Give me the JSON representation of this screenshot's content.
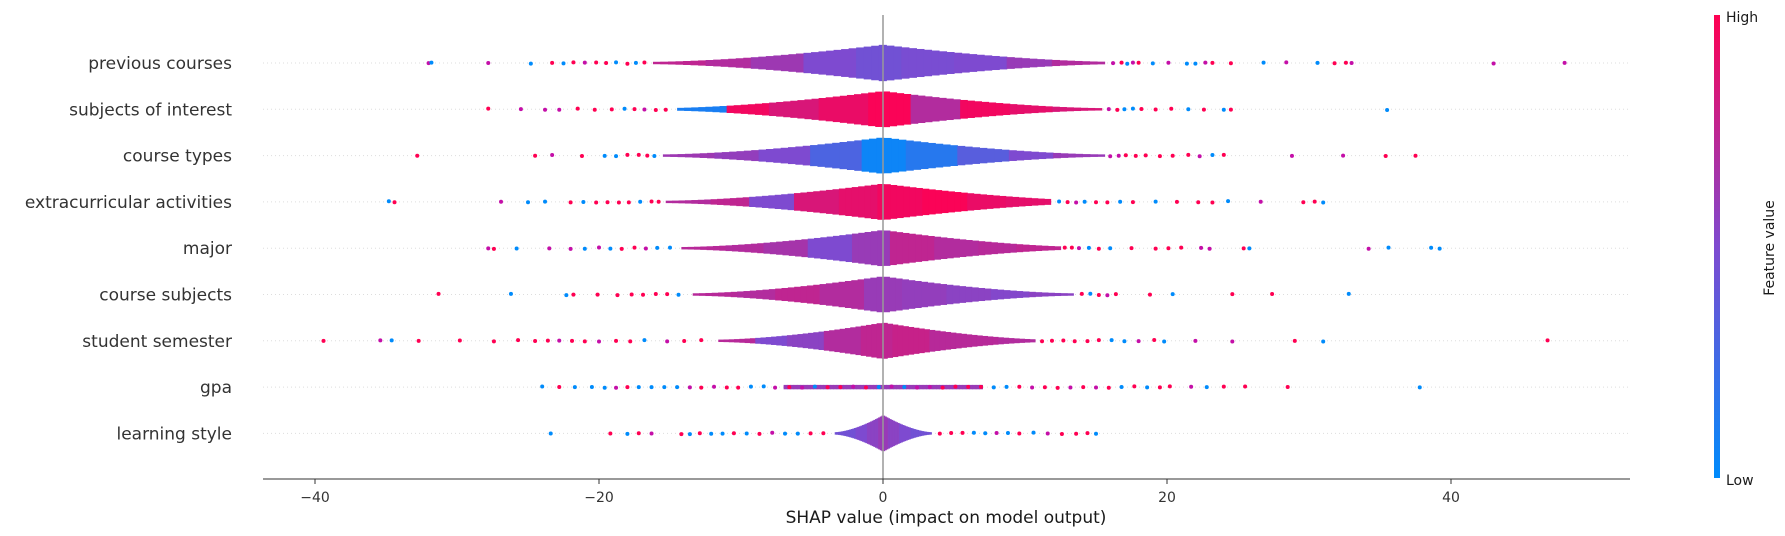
{
  "chart_data": {
    "type": "violin",
    "xlabel": "SHAP value (impact on model output)",
    "xlim": [
      -44,
      52
    ],
    "x_ticks": [
      -40,
      -20,
      0,
      20,
      40
    ],
    "x_tick_labels": [
      "−40",
      "−20",
      "0",
      "20",
      "40"
    ],
    "colorbar": {
      "title": "Feature value",
      "high_label": "High",
      "low_label": "Low",
      "high_color": "#ff0052",
      "low_color": "#008bfb"
    },
    "zero_line": true,
    "features": [
      {
        "name": "previous courses",
        "min": -32.2,
        "max": 48.0,
        "body": [
          -16.2,
          15.6
        ],
        "scatter_values": [
          -32.0,
          -31.8,
          -27.8,
          -24.8,
          -23.3,
          -22.5,
          -21.8,
          -21.0,
          -20.2,
          -19.5,
          -18.8,
          -18.0,
          -17.4,
          -16.8,
          16.2,
          16.8,
          17.2,
          17.6,
          18.0,
          19.0,
          20.1,
          21.4,
          22.0,
          22.7,
          23.2,
          24.5,
          26.8,
          28.4,
          30.6,
          31.8,
          32.6,
          33.0,
          43.0,
          48.0
        ],
        "segment_color_levels": [
          0.75,
          0.7,
          0.62,
          0.5,
          0.45,
          0.48,
          0.5,
          0.6,
          0.7
        ]
      },
      {
        "name": "subjects of interest",
        "min": -27.8,
        "max": 35.5,
        "body": [
          -14.5,
          15.4
        ],
        "scatter_values": [
          -27.8,
          -25.5,
          -23.8,
          -22.8,
          -21.5,
          -20.3,
          -19.1,
          -18.2,
          -17.5,
          -16.8,
          -16.0,
          -15.3,
          15.9,
          16.5,
          17.0,
          17.6,
          18.2,
          19.2,
          20.3,
          21.5,
          22.6,
          24.0,
          24.5,
          35.5
        ],
        "segment_color_levels": [
          0.1,
          0.95,
          0.85,
          0.92,
          0.98,
          0.7,
          0.95,
          0.9,
          0.85
        ]
      },
      {
        "name": "course types",
        "min": -32.8,
        "max": 37.5,
        "body": [
          -15.5,
          15.6
        ],
        "scatter_values": [
          -32.8,
          -24.5,
          -23.3,
          -21.2,
          -19.6,
          -18.8,
          -18.0,
          -17.2,
          -16.6,
          -16.1,
          16.0,
          16.6,
          17.1,
          17.8,
          18.5,
          19.5,
          20.4,
          21.5,
          22.3,
          23.2,
          24.0,
          28.8,
          32.4,
          35.4,
          37.5
        ],
        "segment_color_levels": [
          0.62,
          0.58,
          0.5,
          0.3,
          0.05,
          0.15,
          0.35,
          0.5,
          0.6
        ]
      },
      {
        "name": "extracurricular activities",
        "min": -34.8,
        "max": 31.0,
        "body": [
          -15.3,
          11.8
        ],
        "scatter_values": [
          -34.8,
          -34.4,
          -26.9,
          -25.0,
          -23.8,
          -22.0,
          -21.1,
          -20.2,
          -19.4,
          -18.6,
          -17.9,
          -17.1,
          -16.3,
          -15.8,
          12.4,
          13.0,
          13.6,
          14.2,
          15.0,
          15.8,
          16.7,
          17.6,
          19.2,
          20.7,
          22.2,
          23.2,
          24.3,
          26.6,
          29.6,
          30.4,
          31.0
        ],
        "segment_color_levels": [
          0.7,
          0.75,
          0.5,
          0.85,
          0.9,
          0.95,
          0.98,
          0.92,
          0.9
        ]
      },
      {
        "name": "major",
        "min": -27.8,
        "max": 39.2,
        "body": [
          -14.2,
          12.5
        ],
        "scatter_values": [
          -27.8,
          -27.4,
          -25.8,
          -23.5,
          -22.0,
          -21.0,
          -20.0,
          -19.2,
          -18.4,
          -17.5,
          -16.7,
          -15.9,
          -15.0,
          12.8,
          13.3,
          13.8,
          14.5,
          15.2,
          16.0,
          17.5,
          19.2,
          20.1,
          21.0,
          22.4,
          23.0,
          25.4,
          25.8,
          34.2,
          35.6,
          38.6,
          39.2
        ],
        "segment_color_levels": [
          0.72,
          0.7,
          0.65,
          0.5,
          0.6,
          0.75,
          0.7,
          0.72,
          0.75
        ]
      },
      {
        "name": "course subjects",
        "min": -31.3,
        "max": 32.8,
        "body": [
          -13.4,
          13.4
        ],
        "scatter_values": [
          -31.3,
          -26.2,
          -22.3,
          -21.8,
          -20.1,
          -18.7,
          -17.7,
          -16.9,
          -16.0,
          -15.2,
          -14.4,
          14.0,
          14.6,
          15.2,
          15.8,
          16.4,
          18.8,
          20.4,
          24.6,
          27.4,
          32.8
        ],
        "segment_color_levels": [
          0.72,
          0.7,
          0.75,
          0.7,
          0.6,
          0.58,
          0.55,
          0.52,
          0.55
        ]
      },
      {
        "name": "student semester",
        "min": -39.4,
        "max": 46.8,
        "body": [
          -11.6,
          10.7
        ],
        "scatter_values": [
          -39.4,
          -35.4,
          -34.6,
          -32.7,
          -29.8,
          -27.4,
          -25.7,
          -24.5,
          -23.6,
          -22.8,
          -21.9,
          -21.0,
          -20.0,
          -18.8,
          -17.8,
          -16.8,
          -15.2,
          -14.0,
          -12.8,
          11.2,
          11.9,
          12.7,
          13.5,
          14.4,
          15.2,
          16.1,
          17.0,
          18.0,
          19.1,
          19.8,
          22.0,
          24.6,
          29.0,
          31.0,
          46.8
        ],
        "segment_color_levels": [
          0.72,
          0.5,
          0.55,
          0.7,
          0.75,
          0.78,
          0.72,
          0.72,
          0.7
        ]
      },
      {
        "name": "gpa",
        "min": -24.0,
        "max": 37.8,
        "body": [
          -7.0,
          7.0
        ],
        "scatter_values": [
          -24.0,
          -22.8,
          -21.7,
          -20.5,
          -19.6,
          -18.8,
          -18.0,
          -17.2,
          -16.3,
          -15.4,
          -14.5,
          -13.6,
          -12.8,
          -11.9,
          -11.0,
          -10.2,
          -9.3,
          -8.4,
          -7.6,
          -6.6,
          -5.7,
          -4.8,
          -3.9,
          -3.0,
          -2.1,
          -1.2,
          -0.3,
          0.6,
          1.5,
          2.4,
          3.3,
          4.2,
          5.1,
          6.0,
          6.9,
          7.8,
          8.7,
          9.6,
          10.5,
          11.4,
          12.3,
          13.2,
          14.1,
          15.0,
          15.9,
          16.8,
          17.7,
          18.6,
          19.5,
          20.2,
          21.7,
          22.8,
          24.0,
          25.5,
          28.5,
          37.8
        ],
        "segment_color_levels": [
          0.6,
          0.6,
          0.6,
          0.6,
          0.6,
          0.6,
          0.6,
          0.6,
          0.6
        ]
      },
      {
        "name": "learning style",
        "min": -23.4,
        "max": 15.0,
        "body": [
          -3.4,
          3.4
        ],
        "scatter_values": [
          -23.4,
          -19.2,
          -18.0,
          -17.2,
          -16.3,
          -14.2,
          -13.6,
          -12.9,
          -12.1,
          -11.3,
          -10.5,
          -9.6,
          -8.7,
          -7.8,
          -6.9,
          -6.0,
          -5.1,
          -4.2,
          4.0,
          4.8,
          5.6,
          6.4,
          7.2,
          8.0,
          8.8,
          9.6,
          10.6,
          11.6,
          12.6,
          13.6,
          14.4,
          15.0
        ],
        "segment_color_levels": [
          0.45,
          0.45,
          0.5,
          0.55,
          0.6,
          0.55,
          0.5,
          0.45,
          0.45
        ]
      }
    ]
  }
}
